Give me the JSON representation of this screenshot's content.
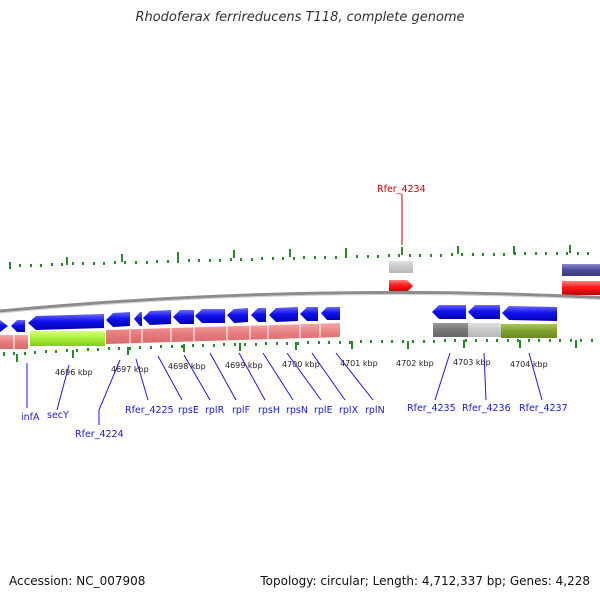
{
  "title": "Rhodoferax ferrireducens T118, complete genome",
  "footer": {
    "accession": "Accession: NC_007908",
    "topology": "Topology: circular; Length: 4,712,337 bp; Genes: 4,228"
  },
  "kbp_labels": [
    "4696 kbp",
    "4697 kbp",
    "4698 kbp",
    "4699 kbp",
    "4700 kbp",
    "4701 kbp",
    "4702 kbp",
    "4703 kbp",
    "4704 kbp"
  ],
  "gene_labels": [
    "infA",
    "secY",
    "Rfer_4224",
    "Rfer_4225",
    "rpsE",
    "rplR",
    "rplF",
    "rpsH",
    "rpsN",
    "rplE",
    "rplX",
    "rplN",
    "Rfer_4235",
    "Rfer_4236",
    "Rfer_4237"
  ],
  "highlight_label": "Rfer_4234",
  "colors": {
    "forward_gene": "#1010ee",
    "reverse_gene": "#ff2020",
    "rrna_band": "#e88080",
    "backbone": "#888888",
    "tick": "#2a8a2a",
    "label": "#1b1bd6",
    "highlight": "#d00000"
  }
}
